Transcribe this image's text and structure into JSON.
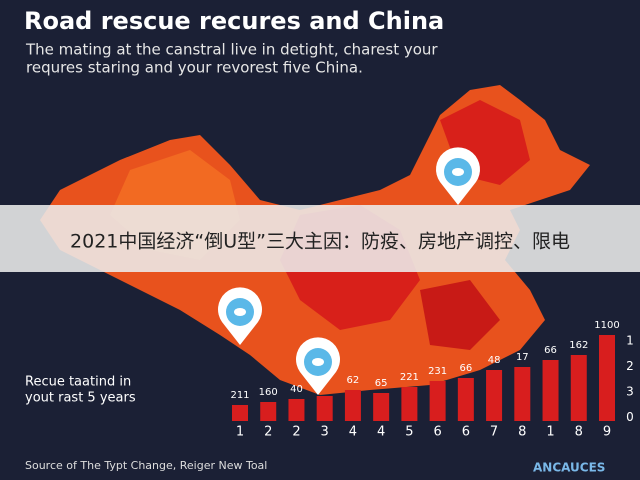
{
  "chart_data": {
    "type": "bar",
    "title": "Road rescue recures and China",
    "subtitle": [
      "The mating at the canstral live in detight, charest your",
      "requres staring and your revorest five China."
    ],
    "annotation": [
      "Recue taatind in",
      "yout rast 5 years"
    ],
    "source": "Source of The Typt Change, Reiger New Toal",
    "brand": "ANCAUCES",
    "categories": [
      "1",
      "2",
      "2",
      "3",
      "4",
      "4",
      "5",
      "6",
      "6",
      "7",
      "8",
      "1",
      "8",
      "9"
    ],
    "values": [
      16,
      19,
      22,
      25,
      31,
      28,
      34,
      40,
      43,
      51,
      54,
      61,
      66,
      86
    ],
    "bar_labels": [
      "211",
      "160",
      "40",
      null,
      "62",
      "65",
      "221",
      "231",
      "66",
      "48",
      "17",
      "66",
      "162",
      "1100"
    ],
    "axis_labels": [
      "1",
      "2",
      "3",
      "0"
    ],
    "ylim": [
      0,
      100
    ],
    "color": "#d81e1e"
  },
  "overlay": {
    "banner": "2021中国经济“倒U型”三大主因：防疫、房地产调控、限电"
  }
}
